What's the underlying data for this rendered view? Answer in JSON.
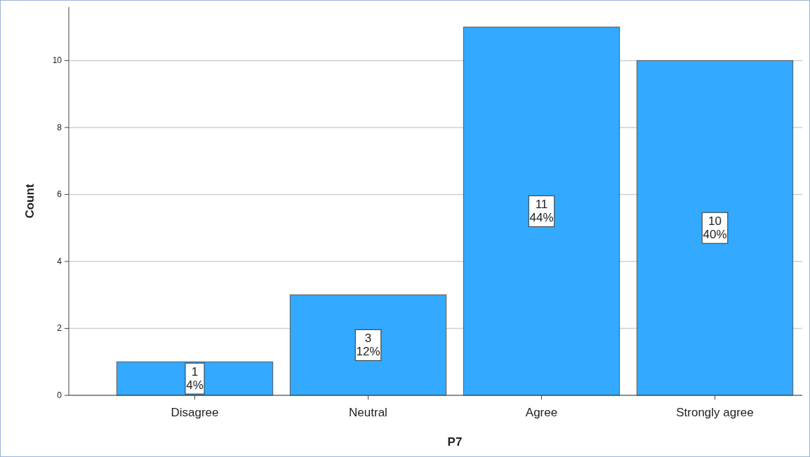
{
  "chart_data": {
    "type": "bar",
    "xlabel": "P7",
    "ylabel": "Count",
    "categories": [
      "Disagree",
      "Neutral",
      "Agree",
      "Strongly agree"
    ],
    "values": [
      1,
      3,
      11,
      10
    ],
    "value_labels": [
      "1\n4%",
      "3\n12%",
      "11\n44%",
      "10\n40%"
    ],
    "color": "#33aaff",
    "ylim": [
      0,
      11.6
    ],
    "yticks": [
      0,
      2,
      4,
      6,
      8,
      10
    ],
    "grid": "y"
  }
}
